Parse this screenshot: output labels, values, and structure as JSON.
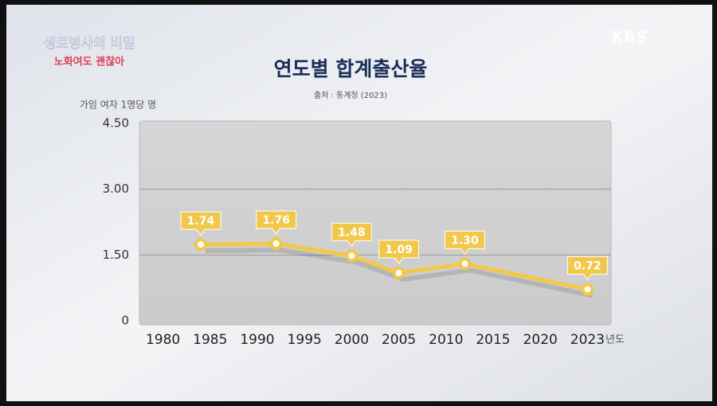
{
  "overlay": {
    "channel": "KBS",
    "program": "생로병사의 비밀",
    "episode": "노화여도 괜찮아"
  },
  "chart_data": {
    "type": "line",
    "title": "연도별 합계출산율",
    "subtitle": "출처 : 통계청 (2023)",
    "y_label": "가임 여자 1명당 명",
    "x_label": "년도",
    "x": [
      1984,
      1992,
      2000,
      2005,
      2012,
      2023
    ],
    "series": [
      {
        "name": "합계출산율",
        "color": "#f2c84b",
        "values": [
          1.74,
          1.76,
          1.48,
          1.09,
          1.3,
          0.72
        ],
        "value_labels": [
          "1.74",
          "1.76",
          "1.48",
          "1.09",
          "1.30",
          "0.72"
        ]
      }
    ],
    "xticks": [
      1980,
      1985,
      1990,
      1995,
      2000,
      2005,
      2010,
      2015,
      2020,
      2023
    ],
    "ylim": [
      0,
      4.5
    ],
    "yticks": [
      0,
      {
        "value": 1.5,
        "label": "1.50"
      },
      {
        "value": 3,
        "label": "3.00"
      },
      {
        "value": 4.5,
        "label": "4.50"
      }
    ],
    "grid": true
  }
}
